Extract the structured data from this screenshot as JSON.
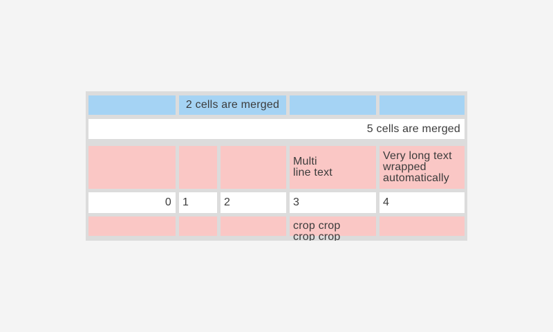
{
  "colors": {
    "page_background": "#f4f4f4",
    "table_frame": "#dcdcdc",
    "cell_blue": "#a5d3f4",
    "cell_pink": "#fac7c5",
    "cell_white": "#ffffff",
    "text": "#3b3b3b"
  },
  "table": {
    "row1": {
      "merged_cell_label": "2 cells are merged"
    },
    "row2": {
      "merged_cell_label": "5 cells are merged"
    },
    "row3": {
      "multiline_cell": "Multi\nline text",
      "wrapped_cell": "Very long text\nwrapped\nautomatically"
    },
    "row4": {
      "col1": "0",
      "col2": "1",
      "col3": "2",
      "col4": "3",
      "col5": "4"
    },
    "row5": {
      "cropped_cell": "crop crop\ncrop crop"
    }
  }
}
